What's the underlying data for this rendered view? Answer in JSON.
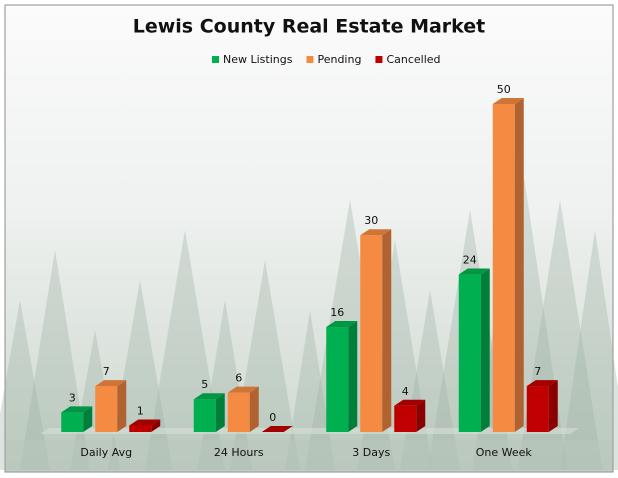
{
  "chart_data": {
    "type": "bar3d",
    "title": "Lewis County Real Estate Market",
    "categories": [
      "Daily Avg",
      "24 Hours",
      "3 Days",
      "One Week"
    ],
    "series": [
      {
        "name": "New Listings",
        "color": "#00b050",
        "values": [
          3,
          5,
          16,
          24
        ]
      },
      {
        "name": "Pending",
        "color": "#f58a42",
        "values": [
          7,
          6,
          30,
          50
        ]
      },
      {
        "name": "Cancelled",
        "color": "#c00000",
        "values": [
          1,
          0,
          4,
          7
        ]
      }
    ],
    "legend": "top"
  }
}
